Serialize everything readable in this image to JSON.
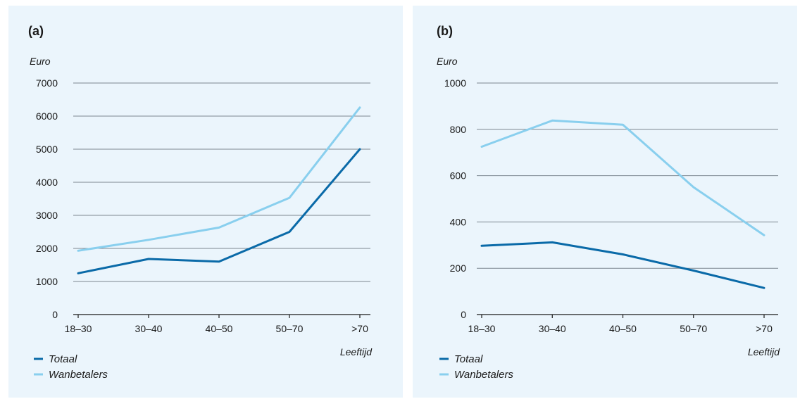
{
  "chart_data": [
    {
      "type": "line",
      "title": "(a)",
      "ylabel": "Euro",
      "xlabel": "Leeftijd",
      "categories": [
        "18–30",
        "30–40",
        "40–50",
        "50–70",
        ">70"
      ],
      "yticks": [
        0,
        1000,
        2000,
        3000,
        4000,
        5000,
        6000,
        7000
      ],
      "ylim": [
        0,
        7000
      ],
      "grid": true,
      "legend_position": "bottom-left",
      "series": [
        {
          "name": "Totaal",
          "color": "#0a6aa8",
          "values": [
            1250,
            1680,
            1600,
            2500,
            5000
          ]
        },
        {
          "name": "Wanbetalers",
          "color": "#89cfee",
          "values": [
            1930,
            2260,
            2630,
            3530,
            6260
          ]
        }
      ]
    },
    {
      "type": "line",
      "title": "(b)",
      "ylabel": "Euro",
      "xlabel": "Leeftijd",
      "categories": [
        "18–30",
        "30–40",
        "40–50",
        "50–70",
        ">70"
      ],
      "yticks": [
        0,
        200,
        400,
        600,
        800,
        1000
      ],
      "ylim": [
        0,
        1000
      ],
      "grid": true,
      "legend_position": "bottom-left",
      "series": [
        {
          "name": "Totaal",
          "color": "#0a6aa8",
          "values": [
            297,
            312,
            260,
            190,
            115
          ]
        },
        {
          "name": "Wanbetalers",
          "color": "#89cfee",
          "values": [
            725,
            838,
            820,
            550,
            343
          ]
        }
      ]
    }
  ]
}
